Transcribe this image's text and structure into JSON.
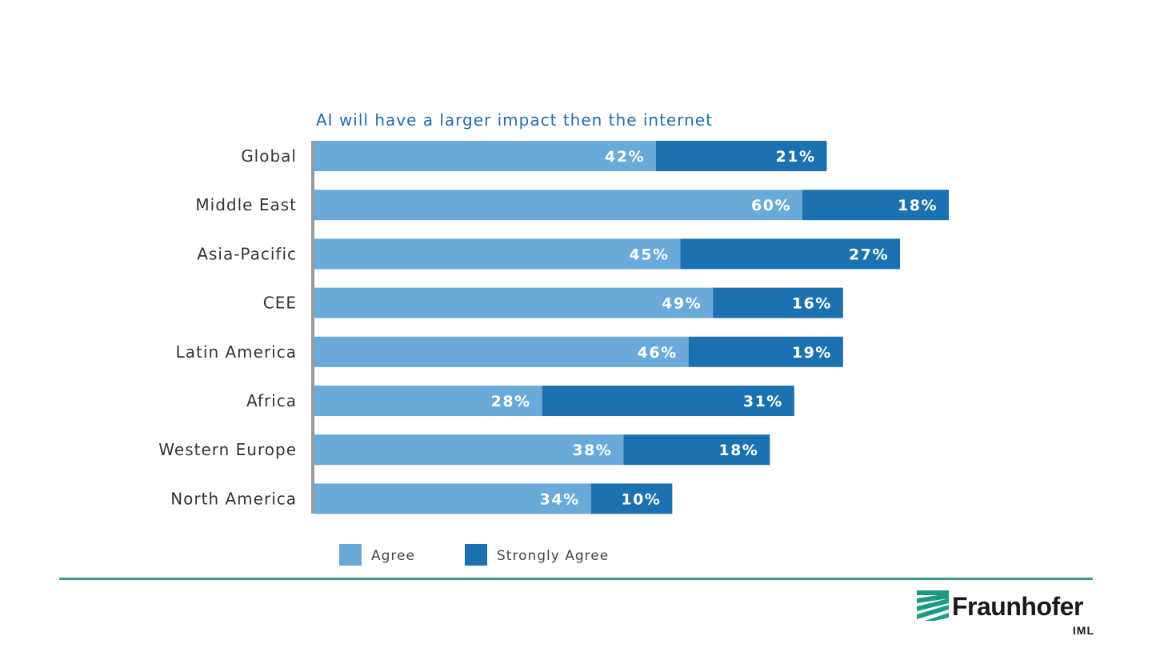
{
  "chart_data": {
    "type": "bar",
    "orientation": "horizontal",
    "stacked": true,
    "title": "AI will have a larger impact then the internet",
    "categories": [
      "Global",
      "Middle East",
      "Asia-Pacific",
      "CEE",
      "Latin America",
      "Africa",
      "Western Europe",
      "North America"
    ],
    "series": [
      {
        "name": "Agree",
        "color": "#6aaad9",
        "values": [
          42,
          60,
          45,
          49,
          46,
          28,
          38,
          34
        ],
        "labels": [
          "42%",
          "60%",
          "45%",
          "49%",
          "46%",
          "28%",
          "38%",
          "34%"
        ]
      },
      {
        "name": "Strongly Agree",
        "color": "#1c72b0",
        "values": [
          21,
          18,
          27,
          16,
          19,
          31,
          18,
          10
        ],
        "labels": [
          "21%",
          "18%",
          "27%",
          "16%",
          "19%",
          "31%",
          "18%",
          "10%"
        ]
      }
    ],
    "xlim": [
      0,
      80
    ],
    "grid": false,
    "legend_position": "bottom-left"
  },
  "logo": {
    "name": "Fraunhofer",
    "sub": "IML",
    "color": "#1a9a83"
  }
}
